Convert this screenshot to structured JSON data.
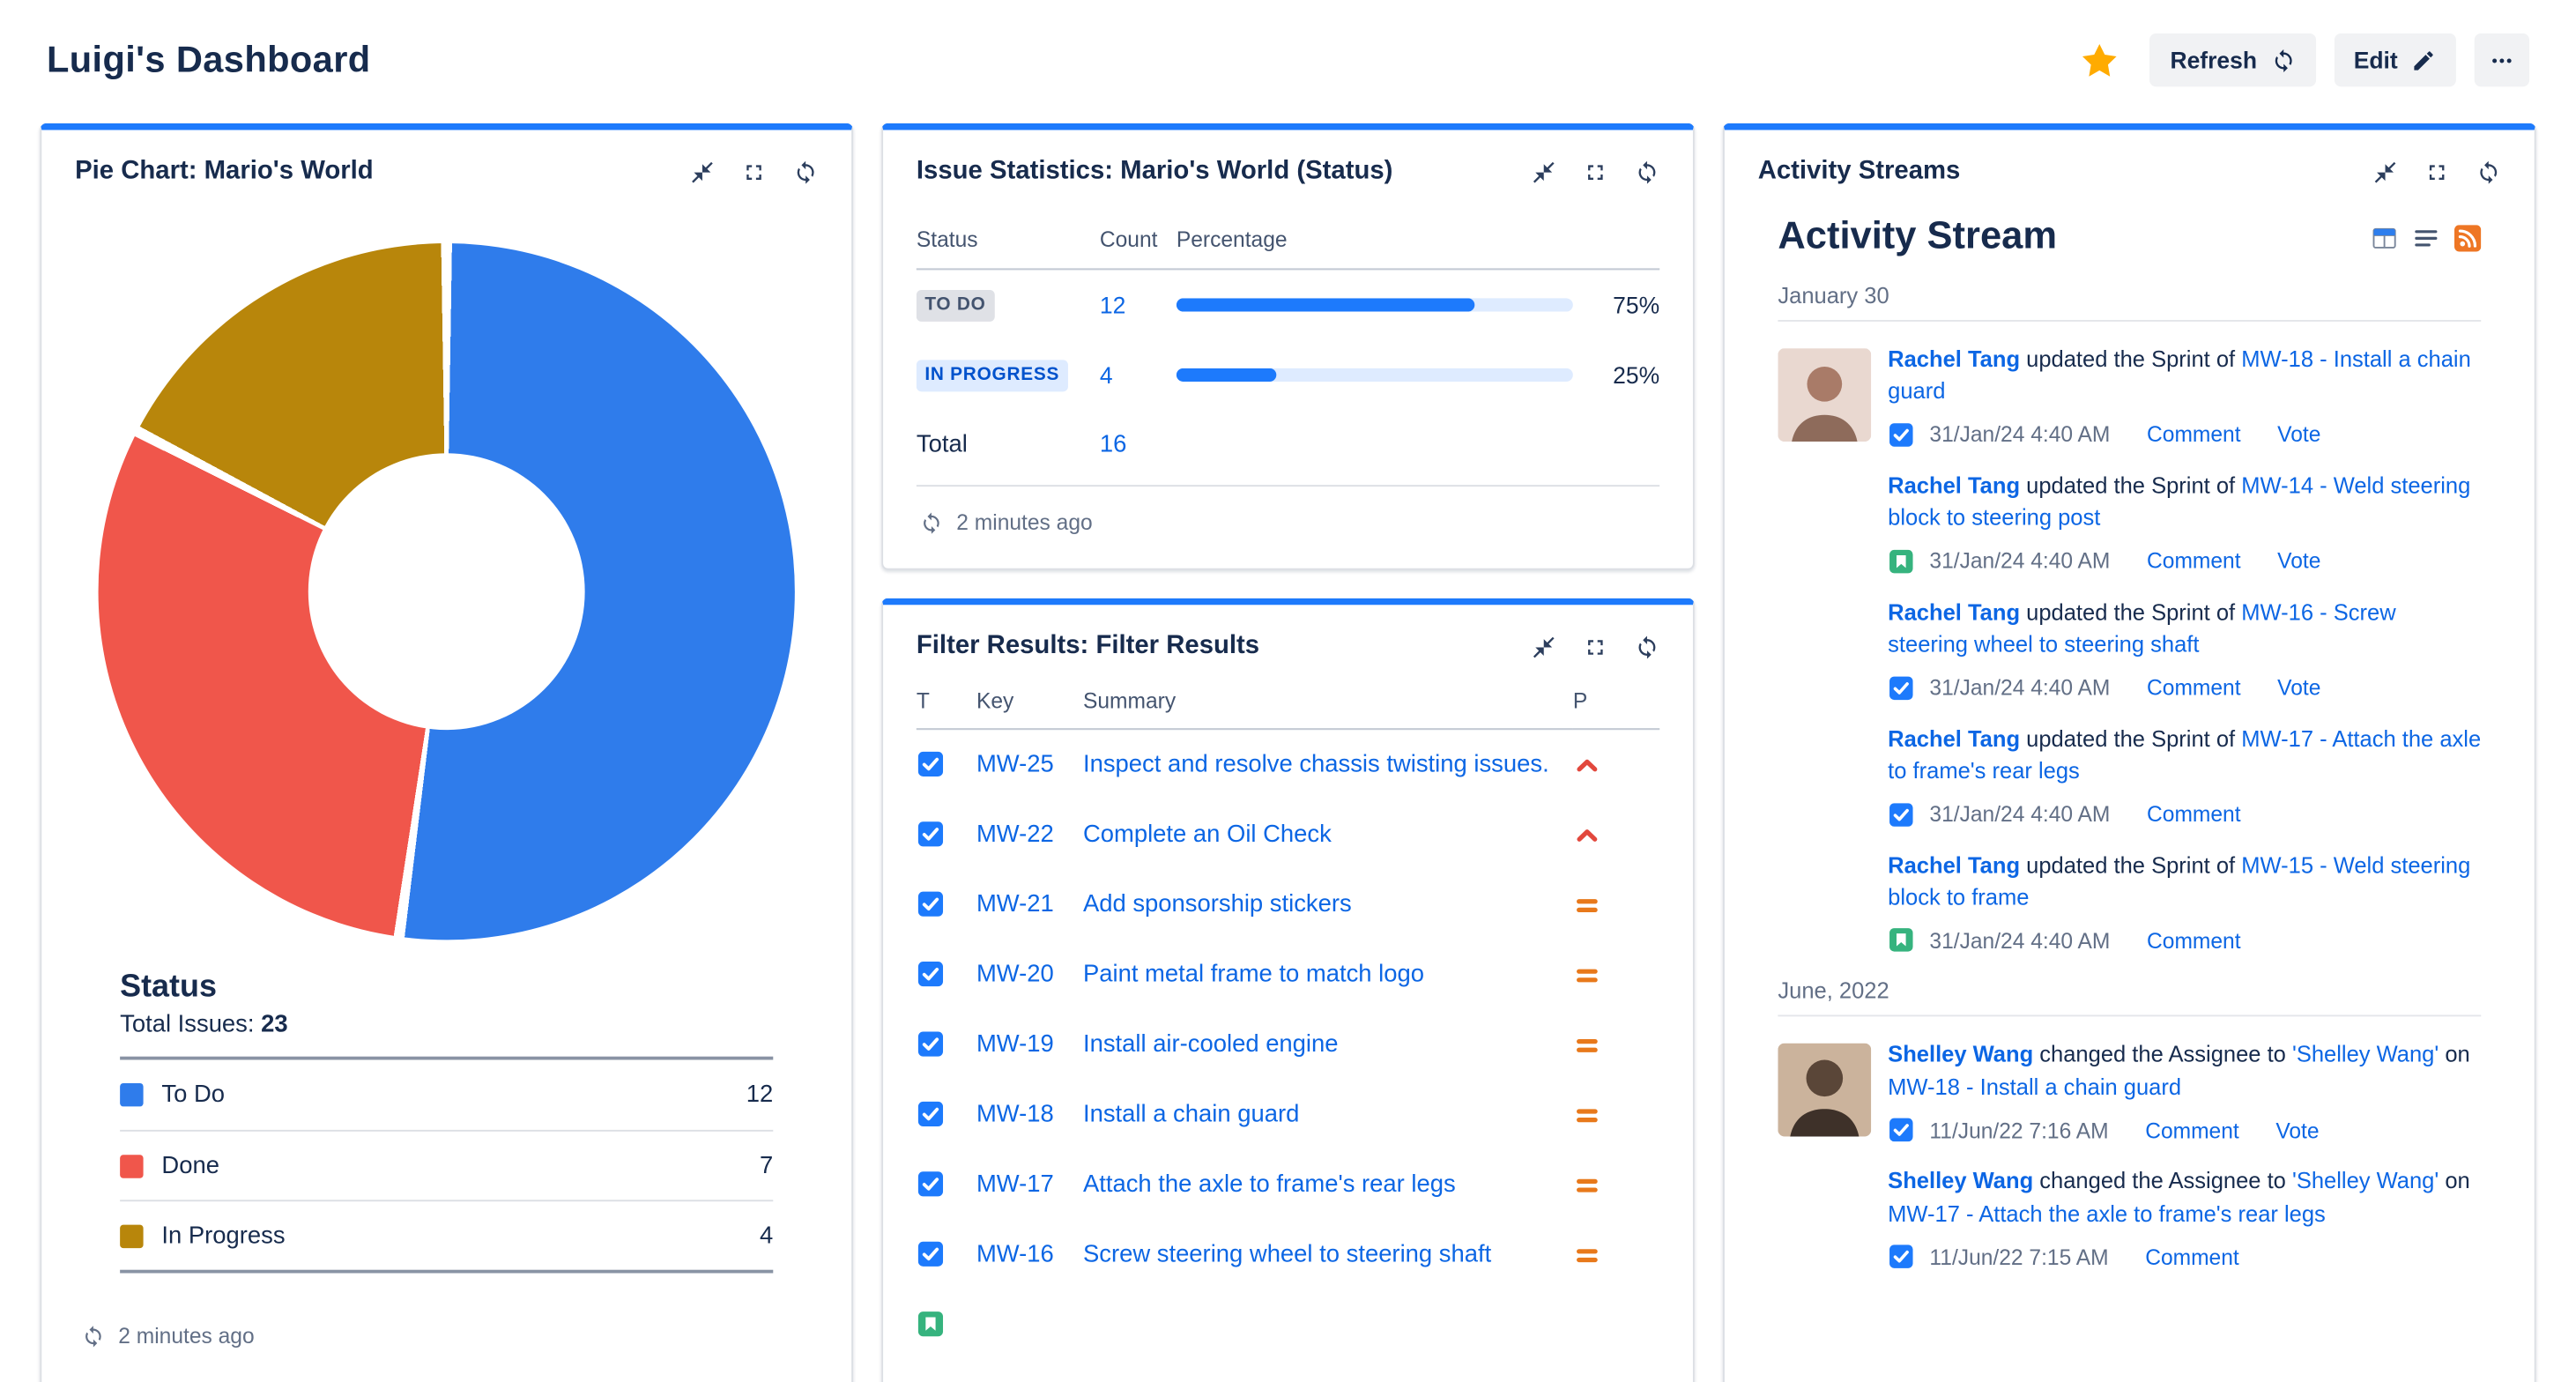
{
  "page": {
    "title": "Luigi's Dashboard"
  },
  "header": {
    "favorite_icon": "star-icon",
    "refresh_label": "Refresh",
    "edit_label": "Edit",
    "more_icon": "ellipsis-icon"
  },
  "colors": {
    "gadget_accent": "#1D7AFC",
    "link_blue": "#0C66E4",
    "star_orange": "#FFAB00",
    "bar_fill": "#1D7AFC",
    "bar_track": "#DEEBFF",
    "priority_high": "#E2483D",
    "priority_medium": "#E8791B",
    "task_blue": "#1D7AFC",
    "story_green": "#36B37E",
    "rss_orange": "#EE7624"
  },
  "gadget_actions": [
    "minimize-icon",
    "expand-icon",
    "refresh-icon"
  ],
  "pie_gadget": {
    "title": "Pie Chart: Mario's World",
    "section_title": "Status",
    "total_label": "Total Issues:",
    "total_value": "23",
    "footer_ago": "2 minutes ago"
  },
  "chart_data": {
    "type": "pie",
    "title": "Status",
    "total_issues": 23,
    "categories": [
      "To Do",
      "Done",
      "In Progress"
    ],
    "values": [
      12,
      7,
      4
    ],
    "colors": [
      "#2F7CEB",
      "#F0564B",
      "#B8860B"
    ],
    "donut": true,
    "start_angle_deg": 0,
    "direction": "clockwise",
    "legend_position": "bottom"
  },
  "stats_gadget": {
    "title": "Issue Statistics: Mario's World (Status)",
    "columns": [
      "Status",
      "Count",
      "Percentage"
    ],
    "rows": [
      {
        "status": "TO DO",
        "variant": "neutral",
        "count": "12",
        "percent": 75,
        "percent_label": "75%"
      },
      {
        "status": "IN PROGRESS",
        "variant": "info",
        "count": "4",
        "percent": 25,
        "percent_label": "25%"
      }
    ],
    "total_label": "Total",
    "total_count": "16",
    "footer_ago": "2 minutes ago"
  },
  "filter_gadget": {
    "title": "Filter Results: Filter Results",
    "columns": {
      "type": "T",
      "key": "Key",
      "summary": "Summary",
      "priority": "P"
    },
    "rows": [
      {
        "type": "task",
        "key": "MW-25",
        "summary": "Inspect and resolve chassis twisting issues.",
        "priority": "high"
      },
      {
        "type": "task",
        "key": "MW-22",
        "summary": "Complete an Oil Check",
        "priority": "high"
      },
      {
        "type": "task",
        "key": "MW-21",
        "summary": "Add sponsorship stickers",
        "priority": "medium"
      },
      {
        "type": "task",
        "key": "MW-20",
        "summary": "Paint metal frame to match logo",
        "priority": "medium"
      },
      {
        "type": "task",
        "key": "MW-19",
        "summary": "Install air-cooled engine",
        "priority": "medium"
      },
      {
        "type": "task",
        "key": "MW-18",
        "summary": "Install a chain guard",
        "priority": "medium"
      },
      {
        "type": "task",
        "key": "MW-17",
        "summary": "Attach the axle to frame's rear legs",
        "priority": "medium"
      },
      {
        "type": "task",
        "key": "MW-16",
        "summary": "Screw steering wheel to steering shaft",
        "priority": "medium"
      },
      {
        "type": "story",
        "key": "",
        "summary": "",
        "priority": ""
      }
    ]
  },
  "activity_gadget": {
    "title": "Activity Streams",
    "stream_title": "Activity Stream",
    "view_icons": [
      "table-view-icon",
      "list-view-icon",
      "rss-icon"
    ],
    "groups": [
      {
        "date": "January 30",
        "items": [
          {
            "avatar": "rachel",
            "name": "Rachel Tang",
            "action": " updated the Sprint of ",
            "issue": "MW-18 - Install a chain guard",
            "icon": "task",
            "time": "31/Jan/24 4:40 AM",
            "links": [
              "Comment",
              "Vote"
            ]
          },
          {
            "name": "Rachel Tang",
            "action": " updated the Sprint of ",
            "issue": "MW-14 - Weld steering block to steering post",
            "icon": "story",
            "time": "31/Jan/24 4:40 AM",
            "links": [
              "Comment",
              "Vote"
            ]
          },
          {
            "name": "Rachel Tang",
            "action": " updated the Sprint of ",
            "issue": "MW-16 - Screw steering wheel to steering shaft",
            "icon": "task",
            "time": "31/Jan/24 4:40 AM",
            "links": [
              "Comment",
              "Vote"
            ]
          },
          {
            "name": "Rachel Tang",
            "action": " updated the Sprint of ",
            "issue": "MW-17 - Attach the axle to frame's rear legs",
            "icon": "task",
            "time": "31/Jan/24 4:40 AM",
            "links": [
              "Comment"
            ]
          },
          {
            "name": "Rachel Tang",
            "action": " updated the Sprint of ",
            "issue": "MW-15 - Weld steering block to frame",
            "icon": "story",
            "time": "31/Jan/24 4:40 AM",
            "links": [
              "Comment"
            ]
          }
        ]
      },
      {
        "date": "June, 2022",
        "items": [
          {
            "avatar": "shelley",
            "name": "Shelley Wang",
            "action": " changed the Assignee to ",
            "assignee": "'Shelley Wang'",
            "action2": " on ",
            "issue": "MW-18 - Install a chain guard",
            "icon": "task",
            "time": "11/Jun/22 7:16 AM",
            "links": [
              "Comment",
              "Vote"
            ]
          },
          {
            "name": "Shelley Wang",
            "action": " changed the Assignee to ",
            "assignee": "'Shelley Wang'",
            "action2": " on ",
            "issue": "MW-17 - Attach the axle to frame's rear legs",
            "icon": "task",
            "time": "11/Jun/22 7:15 AM",
            "links": [
              "Comment"
            ]
          }
        ]
      }
    ]
  }
}
